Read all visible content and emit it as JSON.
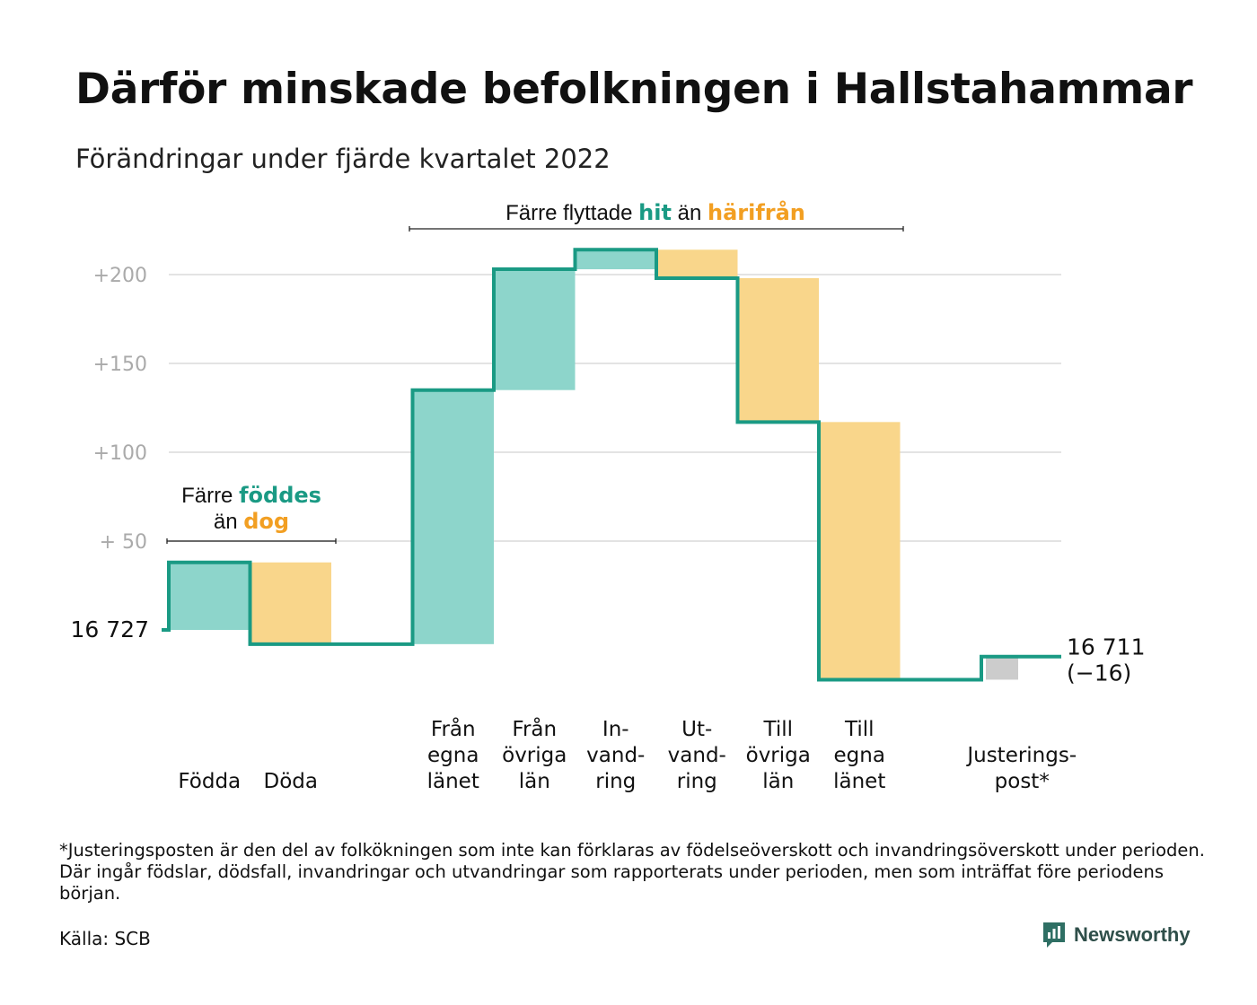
{
  "title": "Därför minskade befolkningen i Hallstahammar",
  "subtitle": "Förändringar under fjärde kvartalet 2022",
  "colors": {
    "increase": "#8DD5CB",
    "decrease": "#F9D68B",
    "adjustment": "#CCCCCC",
    "line": "#1A9A84",
    "accent_teal": "#1A9A84",
    "accent_orange": "#F29F22",
    "grid": "#E3E3E3",
    "tick": "#AAAAAA"
  },
  "annotations": {
    "births_deaths": {
      "line1_prefix": "Färre ",
      "line1_highlight": "föddes",
      "line2_prefix": "än ",
      "line2_highlight": "dog"
    },
    "migration": {
      "prefix": "Färre flyttade ",
      "highlight1": "hit",
      "middle": " än ",
      "highlight2": "härifrån"
    }
  },
  "chart_data": {
    "type": "waterfall",
    "start": {
      "label": "16 727",
      "value": 0
    },
    "end": {
      "label_line1": "16 711",
      "label_line2": "(−16)",
      "value": -16
    },
    "ylim": [
      -30,
      220
    ],
    "yticks": [
      {
        "value": 200,
        "label": "+200"
      },
      {
        "value": 150,
        "label": "+150"
      },
      {
        "value": 100,
        "label": "+100"
      },
      {
        "value": 50,
        "label": "+ 50"
      }
    ],
    "grid": true,
    "steps": [
      {
        "label_lines": [
          "",
          "",
          "Födda"
        ],
        "delta": 38,
        "kind": "increase"
      },
      {
        "label_lines": [
          "",
          "",
          "Döda"
        ],
        "delta": -46,
        "kind": "decrease"
      },
      {
        "label_lines": [],
        "delta": 0,
        "kind": "gap"
      },
      {
        "label_lines": [
          "Från",
          "egna",
          "länet"
        ],
        "delta": 143,
        "kind": "increase"
      },
      {
        "label_lines": [
          "Från",
          "övriga",
          "län"
        ],
        "delta": 68,
        "kind": "increase"
      },
      {
        "label_lines": [
          "In-",
          "vand-",
          "ring"
        ],
        "delta": 11,
        "kind": "increase"
      },
      {
        "label_lines": [
          "Ut-",
          "vand-",
          "ring"
        ],
        "delta": -16,
        "kind": "decrease"
      },
      {
        "label_lines": [
          "Till",
          "övriga",
          "län"
        ],
        "delta": -81,
        "kind": "decrease"
      },
      {
        "label_lines": [
          "Till",
          "egna",
          "länet"
        ],
        "delta": -145,
        "kind": "decrease"
      },
      {
        "label_lines": [],
        "delta": 0,
        "kind": "gap"
      },
      {
        "label_lines": [
          "Justerings-",
          "post*"
        ],
        "delta": 13,
        "kind": "adjustment"
      }
    ]
  },
  "footnote": "*Justeringsposten är den del av folkökningen som inte kan förklaras av födelseöverskott och invandringsöverskott under perioden. Där ingår födslar, dödsfall, invandringar och utvandringar som rapporterats under perioden, men som inträffat före periodens början.",
  "source": "Källa: SCB",
  "brand": {
    "name": "Newsworthy",
    "icon": "newsworthy-logo-icon"
  }
}
